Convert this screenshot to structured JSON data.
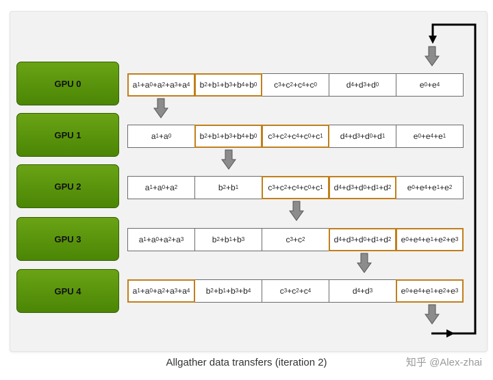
{
  "caption": "Allgather data transfers (iteration 2)",
  "watermark": "知乎 @Alex-zhai",
  "colors": {
    "gpu_green": "#5a9a0c",
    "highlight": "#c07f1a",
    "arrow_gray": "#8c8c8c"
  },
  "gpus": [
    {
      "label": "GPU 0",
      "cells": [
        {
          "parts": [
            [
              "a",
              "1"
            ],
            [
              "+a",
              "0"
            ],
            [
              "+a",
              "2"
            ],
            [
              "+a",
              "3"
            ],
            [
              "+a",
              "4"
            ]
          ],
          "highlight": true
        },
        {
          "parts": [
            [
              "b",
              "2"
            ],
            [
              "+b",
              "1"
            ],
            [
              "+b",
              "3"
            ],
            [
              "+b",
              "4"
            ],
            [
              "+b",
              "0"
            ]
          ],
          "highlight": true
        },
        {
          "parts": [
            [
              "c",
              "3"
            ],
            [
              "+c",
              "2"
            ],
            [
              "+c",
              "4"
            ],
            [
              "+c",
              "0"
            ]
          ],
          "highlight": false
        },
        {
          "parts": [
            [
              "d",
              "4"
            ],
            [
              "+d",
              "3"
            ],
            [
              "+d",
              "0"
            ]
          ],
          "highlight": false
        },
        {
          "parts": [
            [
              "e",
              "0"
            ],
            [
              "+e",
              "4"
            ]
          ],
          "highlight": false
        }
      ]
    },
    {
      "label": "GPU 1",
      "cells": [
        {
          "parts": [
            [
              "a",
              "1"
            ],
            [
              "+a",
              "0"
            ]
          ],
          "highlight": false
        },
        {
          "parts": [
            [
              "b",
              "2"
            ],
            [
              "+b",
              "1"
            ],
            [
              "+b",
              "3"
            ],
            [
              "+b",
              "4"
            ],
            [
              "+b",
              "0"
            ]
          ],
          "highlight": true
        },
        {
          "parts": [
            [
              "c",
              "3"
            ],
            [
              "+c",
              "2"
            ],
            [
              "+c",
              "4"
            ],
            [
              "+c",
              "0"
            ],
            [
              "+c",
              "1"
            ]
          ],
          "highlight": true
        },
        {
          "parts": [
            [
              "d",
              "4"
            ],
            [
              "+d",
              "3"
            ],
            [
              "+d",
              "0"
            ],
            [
              "+d",
              "1"
            ]
          ],
          "highlight": false
        },
        {
          "parts": [
            [
              "e",
              "0"
            ],
            [
              "+e",
              "4"
            ],
            [
              "+e",
              "1"
            ]
          ],
          "highlight": false
        }
      ]
    },
    {
      "label": "GPU 2",
      "cells": [
        {
          "parts": [
            [
              "a",
              "1"
            ],
            [
              "+a",
              "0"
            ],
            [
              "+a",
              "2"
            ]
          ],
          "highlight": false
        },
        {
          "parts": [
            [
              "b",
              "2"
            ],
            [
              "+b",
              "1"
            ]
          ],
          "highlight": false
        },
        {
          "parts": [
            [
              "c",
              "3"
            ],
            [
              "+c",
              "2"
            ],
            [
              "+c",
              "4"
            ],
            [
              "+c",
              "0"
            ],
            [
              "+c",
              "1"
            ]
          ],
          "highlight": true
        },
        {
          "parts": [
            [
              "d",
              "4"
            ],
            [
              "+d",
              "3"
            ],
            [
              "+d",
              "0"
            ],
            [
              "+d",
              "1"
            ],
            [
              "+d",
              "2"
            ]
          ],
          "highlight": true
        },
        {
          "parts": [
            [
              "e",
              "0"
            ],
            [
              "+e",
              "4"
            ],
            [
              "+e",
              "1"
            ],
            [
              "+e",
              "2"
            ]
          ],
          "highlight": false
        }
      ]
    },
    {
      "label": "GPU 3",
      "cells": [
        {
          "parts": [
            [
              "a",
              "1"
            ],
            [
              "+a",
              "0"
            ],
            [
              "+a",
              "2"
            ],
            [
              "+a",
              "3"
            ]
          ],
          "highlight": false
        },
        {
          "parts": [
            [
              "b",
              "2"
            ],
            [
              "+b",
              "1"
            ],
            [
              "+b",
              "3"
            ]
          ],
          "highlight": false
        },
        {
          "parts": [
            [
              "c",
              "3"
            ],
            [
              "+c",
              "2"
            ]
          ],
          "highlight": false
        },
        {
          "parts": [
            [
              "d",
              "4"
            ],
            [
              "+d",
              "3"
            ],
            [
              "+d",
              "0"
            ],
            [
              "+d",
              "1"
            ],
            [
              "+d",
              "2"
            ]
          ],
          "highlight": true
        },
        {
          "parts": [
            [
              "e",
              "0"
            ],
            [
              "+e",
              "4"
            ],
            [
              "+e",
              "1"
            ],
            [
              "+e",
              "2"
            ],
            [
              "+e",
              "3"
            ]
          ],
          "highlight": true
        }
      ]
    },
    {
      "label": "GPU 4",
      "cells": [
        {
          "parts": [
            [
              "a",
              "1"
            ],
            [
              "+a",
              "0"
            ],
            [
              "+a",
              "2"
            ],
            [
              "+a",
              "3"
            ],
            [
              "+a",
              "4"
            ]
          ],
          "highlight": true
        },
        {
          "parts": [
            [
              "b",
              "2"
            ],
            [
              "+b",
              "1"
            ],
            [
              "+b",
              "3"
            ],
            [
              "+b",
              "4"
            ]
          ],
          "highlight": false
        },
        {
          "parts": [
            [
              "c",
              "3"
            ],
            [
              "+c",
              "2"
            ],
            [
              "+c",
              "4"
            ]
          ],
          "highlight": false
        },
        {
          "parts": [
            [
              "d",
              "4"
            ],
            [
              "+d",
              "3"
            ]
          ],
          "highlight": false
        },
        {
          "parts": [
            [
              "e",
              "0"
            ],
            [
              "+e",
              "4"
            ],
            [
              "+e",
              "1"
            ],
            [
              "+e",
              "2"
            ],
            [
              "+e",
              "3"
            ]
          ],
          "highlight": true
        }
      ]
    }
  ]
}
